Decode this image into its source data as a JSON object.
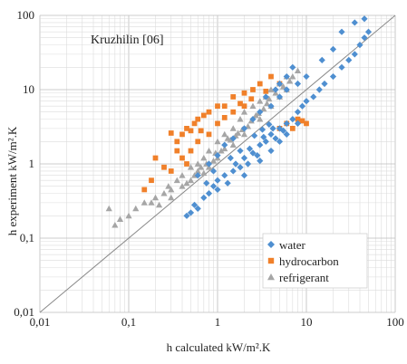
{
  "chart_data": {
    "type": "scatter",
    "title": "Kruzhilin [06]",
    "xlabel": "h calculated kW/m².K",
    "ylabel": "h experiment kW/m².K",
    "xscale": "log",
    "yscale": "log",
    "xlim": [
      0.01,
      100
    ],
    "ylim": [
      0.01,
      100
    ],
    "x_ticks": [
      "0,01",
      "0,1",
      "1",
      "10",
      "100"
    ],
    "y_ticks": [
      "0,01",
      "0,1",
      "1",
      "10",
      "100"
    ],
    "grid": true,
    "legend_position": "bottom-right",
    "reference_line": "y = x",
    "series": [
      {
        "name": "water",
        "marker": "diamond",
        "color": "#4f8fd0",
        "points": [
          [
            0.45,
            0.2
          ],
          [
            0.5,
            0.22
          ],
          [
            0.55,
            0.28
          ],
          [
            0.6,
            0.25
          ],
          [
            0.7,
            0.35
          ],
          [
            0.8,
            0.4
          ],
          [
            0.9,
            0.5
          ],
          [
            1.0,
            0.6
          ],
          [
            1.0,
            0.45
          ],
          [
            1.2,
            0.7
          ],
          [
            1.3,
            0.55
          ],
          [
            1.5,
            0.8
          ],
          [
            1.6,
            1.0
          ],
          [
            1.8,
            0.9
          ],
          [
            2.0,
            1.2
          ],
          [
            2.2,
            1.0
          ],
          [
            2.5,
            1.4
          ],
          [
            2.8,
            1.3
          ],
          [
            3.0,
            1.8
          ],
          [
            3.5,
            2.0
          ],
          [
            4.0,
            2.5
          ],
          [
            4.5,
            2.2
          ],
          [
            5.0,
            3.0
          ],
          [
            5.5,
            2.8
          ],
          [
            6.0,
            3.5
          ],
          [
            7.0,
            4.0
          ],
          [
            8.0,
            5.0
          ],
          [
            9.0,
            6.0
          ],
          [
            10.0,
            7.0
          ],
          [
            12.0,
            8.0
          ],
          [
            14.0,
            10.0
          ],
          [
            16.0,
            12.0
          ],
          [
            20.0,
            15.0
          ],
          [
            25.0,
            20.0
          ],
          [
            30.0,
            25.0
          ],
          [
            35.0,
            30.0
          ],
          [
            40.0,
            40.0
          ],
          [
            45.0,
            50.0
          ],
          [
            50.0,
            60.0
          ],
          [
            35.0,
            80.0
          ],
          [
            45.0,
            90.0
          ],
          [
            25.0,
            60.0
          ],
          [
            20.0,
            35.0
          ],
          [
            15.0,
            25.0
          ],
          [
            10.0,
            15.0
          ],
          [
            8.0,
            12.0
          ],
          [
            6.0,
            10.0
          ],
          [
            5.0,
            8.0
          ],
          [
            4.0,
            6.0
          ],
          [
            3.0,
            5.0
          ],
          [
            2.5,
            4.0
          ],
          [
            2.0,
            3.0
          ],
          [
            1.5,
            2.2
          ],
          [
            1.2,
            1.8
          ],
          [
            1.0,
            1.3
          ],
          [
            0.8,
            1.0
          ],
          [
            0.6,
            0.7
          ],
          [
            2.0,
            0.7
          ],
          [
            3.0,
            1.1
          ],
          [
            4.0,
            1.5
          ],
          [
            5.0,
            2.0
          ],
          [
            6.0,
            2.5
          ],
          [
            8.0,
            3.5
          ],
          [
            6.0,
            15.0
          ],
          [
            5.0,
            12.0
          ],
          [
            7.0,
            20.0
          ],
          [
            3.5,
            8.0
          ],
          [
            4.5,
            10.0
          ],
          [
            1.8,
            1.5
          ],
          [
            2.6,
            2.4
          ],
          [
            3.2,
            2.9
          ],
          [
            3.8,
            3.4
          ],
          [
            1.4,
            1.2
          ],
          [
            0.9,
            0.8
          ],
          [
            0.75,
            0.55
          ],
          [
            2.3,
            1.6
          ],
          [
            3.3,
            2.3
          ],
          [
            4.2,
            3.0
          ]
        ]
      },
      {
        "name": "hydrocarbon",
        "marker": "square",
        "color": "#f0802a",
        "points": [
          [
            0.15,
            0.45
          ],
          [
            0.18,
            0.6
          ],
          [
            0.2,
            1.2
          ],
          [
            0.25,
            0.9
          ],
          [
            0.3,
            0.8
          ],
          [
            0.3,
            2.6
          ],
          [
            0.35,
            1.5
          ],
          [
            0.4,
            2.5
          ],
          [
            0.45,
            3.0
          ],
          [
            0.5,
            2.8
          ],
          [
            0.6,
            4.0
          ],
          [
            0.7,
            4.5
          ],
          [
            0.8,
            5.0
          ],
          [
            1.0,
            6.0
          ],
          [
            1.2,
            6.0
          ],
          [
            1.5,
            8.0
          ],
          [
            2.0,
            9.0
          ],
          [
            2.5,
            10.0
          ],
          [
            3.0,
            12.0
          ],
          [
            4.0,
            15.0
          ],
          [
            5.0,
            12.0
          ],
          [
            5.0,
            3.0
          ],
          [
            6.0,
            3.5
          ],
          [
            8.0,
            4.0
          ],
          [
            10.0,
            3.5
          ],
          [
            7.0,
            3.0
          ],
          [
            0.5,
            1.5
          ],
          [
            0.4,
            1.2
          ],
          [
            0.6,
            2.0
          ],
          [
            0.8,
            2.5
          ],
          [
            1.0,
            3.5
          ],
          [
            1.5,
            5.0
          ],
          [
            2.0,
            6.0
          ],
          [
            0.35,
            2.0
          ],
          [
            0.45,
            1.0
          ],
          [
            0.55,
            3.5
          ],
          [
            0.65,
            2.8
          ],
          [
            1.2,
            4.2
          ],
          [
            1.8,
            6.5
          ],
          [
            2.4,
            7.5
          ],
          [
            3.5,
            9.5
          ],
          [
            9.0,
            3.8
          ]
        ]
      },
      {
        "name": "refrigerant",
        "marker": "triangle",
        "color": "#a6a6a6",
        "points": [
          [
            0.06,
            0.25
          ],
          [
            0.07,
            0.15
          ],
          [
            0.08,
            0.18
          ],
          [
            0.1,
            0.2
          ],
          [
            0.12,
            0.25
          ],
          [
            0.15,
            0.3
          ],
          [
            0.18,
            0.3
          ],
          [
            0.2,
            0.35
          ],
          [
            0.25,
            0.4
          ],
          [
            0.3,
            0.45
          ],
          [
            0.35,
            0.6
          ],
          [
            0.4,
            0.7
          ],
          [
            0.5,
            0.9
          ],
          [
            0.6,
            1.0
          ],
          [
            0.7,
            1.2
          ],
          [
            0.8,
            1.5
          ],
          [
            1.0,
            2.0
          ],
          [
            1.2,
            2.5
          ],
          [
            1.5,
            3.0
          ],
          [
            1.8,
            4.0
          ],
          [
            2.0,
            5.0
          ],
          [
            2.5,
            6.0
          ],
          [
            3.0,
            7.0
          ],
          [
            3.5,
            8.0
          ],
          [
            4.0,
            10.0
          ],
          [
            5.0,
            12.0
          ],
          [
            6.0,
            15.0
          ],
          [
            7.0,
            15.0
          ],
          [
            8.0,
            18.0
          ],
          [
            3.0,
            4.0
          ],
          [
            2.0,
            2.5
          ],
          [
            1.5,
            1.8
          ],
          [
            1.0,
            1.2
          ],
          [
            0.5,
            0.6
          ],
          [
            0.3,
            0.35
          ],
          [
            0.8,
            0.9
          ],
          [
            1.2,
            1.6
          ],
          [
            4.0,
            6.0
          ],
          [
            5.0,
            8.0
          ],
          [
            6.0,
            10.0
          ],
          [
            0.4,
            0.5
          ],
          [
            0.6,
            0.8
          ],
          [
            0.9,
            1.1
          ],
          [
            1.1,
            1.5
          ],
          [
            1.4,
            2.1
          ],
          [
            1.7,
            2.6
          ],
          [
            2.2,
            3.2
          ],
          [
            2.7,
            4.5
          ],
          [
            3.3,
            5.5
          ],
          [
            0.22,
            0.28
          ],
          [
            0.28,
            0.5
          ],
          [
            0.45,
            0.55
          ],
          [
            0.7,
            0.75
          ],
          [
            1.3,
            2.2
          ],
          [
            2.4,
            3.8
          ],
          [
            3.8,
            7.5
          ],
          [
            4.5,
            9.0
          ],
          [
            5.5,
            11.0
          ],
          [
            6.5,
            13.0
          ],
          [
            0.55,
            0.7
          ],
          [
            0.65,
            0.9
          ],
          [
            0.75,
            1.0
          ],
          [
            0.95,
            1.4
          ],
          [
            1.6,
            2.4
          ],
          [
            1.9,
            2.9
          ],
          [
            2.9,
            4.8
          ],
          [
            3.6,
            6.5
          ]
        ]
      }
    ]
  }
}
